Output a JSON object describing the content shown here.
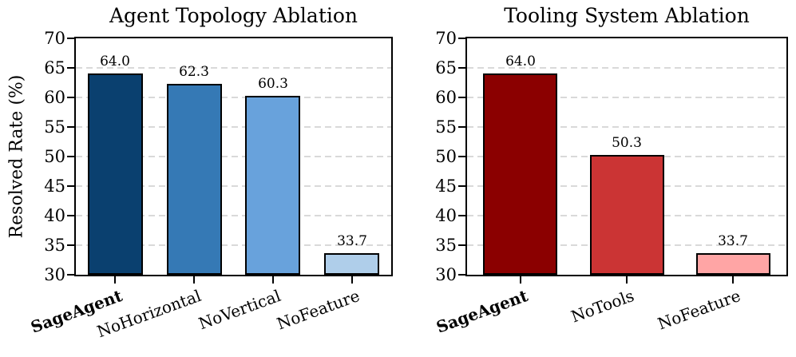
{
  "figure": {
    "background": "#ffffff",
    "text_color": "#000000",
    "grid_color": "#d9d9d9",
    "frame_color": "#000000"
  },
  "chart_data": [
    {
      "type": "bar",
      "title": "Agent Topology Ablation",
      "ylabel": "Resolved Rate (%)",
      "xlabel": "",
      "categories": [
        "SageAgent",
        "NoHorizontal",
        "NoVertical",
        "NoFeature"
      ],
      "values": [
        64.0,
        62.3,
        60.3,
        33.7
      ],
      "value_labels": [
        "64.0",
        "62.3",
        "60.3",
        "33.7"
      ],
      "bar_colors": [
        "#0a406f",
        "#3579b5",
        "#68a2dc",
        "#afceea"
      ],
      "bar_edge_color": "#000000",
      "bold_categories": [
        true,
        false,
        false,
        false
      ],
      "ylim": [
        30,
        70
      ],
      "yticks": [
        30,
        35,
        40,
        45,
        50,
        55,
        60,
        65,
        70
      ],
      "ytick_labels": [
        "30",
        "35",
        "40",
        "45",
        "50",
        "55",
        "60",
        "65",
        "70"
      ],
      "grid": "horizontal dashed",
      "legend": "none"
    },
    {
      "type": "bar",
      "title": "Tooling System Ablation",
      "ylabel": "",
      "xlabel": "",
      "categories": [
        "SageAgent",
        "NoTools",
        "NoFeature"
      ],
      "values": [
        64.0,
        50.3,
        33.7
      ],
      "value_labels": [
        "64.0",
        "50.3",
        "33.7"
      ],
      "bar_colors": [
        "#8b0000",
        "#cb3434",
        "#ffa5a5"
      ],
      "bar_edge_color": "#000000",
      "bold_categories": [
        true,
        false,
        false
      ],
      "ylim": [
        30,
        70
      ],
      "yticks": [
        30,
        35,
        40,
        45,
        50,
        55,
        60,
        65,
        70
      ],
      "ytick_labels": [
        "30",
        "35",
        "40",
        "45",
        "50",
        "55",
        "60",
        "65",
        "70"
      ],
      "grid": "horizontal dashed",
      "legend": "none"
    }
  ]
}
